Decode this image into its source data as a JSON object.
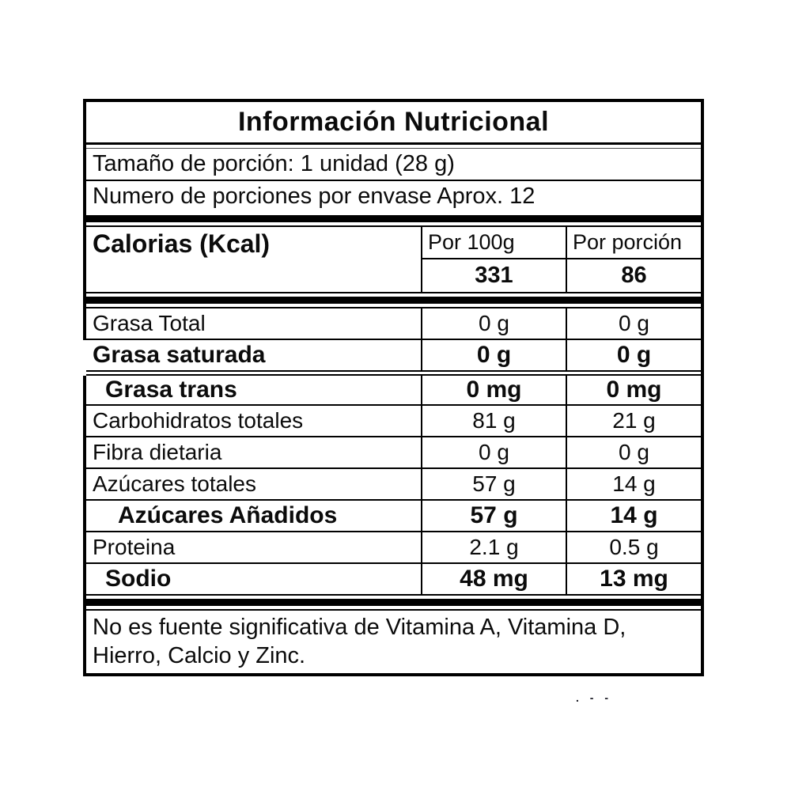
{
  "title": "Información Nutricional",
  "serving": {
    "line1": "Tamaño de porción: 1 unidad (28 g)",
    "line2": "Numero de porciones por envase Aprox. 12"
  },
  "calories": {
    "label": "Calorias (Kcal)",
    "per_100g_header": "Por 100g",
    "per_portion_header": "Por porción",
    "per_100g_value": "331",
    "per_portion_value": "86"
  },
  "columns": [
    "",
    "Por 100g",
    "Por porción"
  ],
  "nutrients": [
    {
      "label": "Grasa Total",
      "per_100g": "0 g",
      "per_portion": "0 g",
      "bold": false,
      "indent": 0
    },
    {
      "label": "Grasa saturada",
      "per_100g": "0 g",
      "per_portion": "0 g",
      "bold": true,
      "indent": 0
    },
    {
      "label": "Grasa trans",
      "per_100g": "0 mg",
      "per_portion": "0 mg",
      "bold": true,
      "indent": 1
    },
    {
      "label": "Carbohidratos totales",
      "per_100g": "81 g",
      "per_portion": "21 g",
      "bold": false,
      "indent": 0
    },
    {
      "label": "Fibra dietaria",
      "per_100g": "0 g",
      "per_portion": "0 g",
      "bold": false,
      "indent": 0
    },
    {
      "label": "Azúcares totales",
      "per_100g": "57 g",
      "per_portion": "14 g",
      "bold": false,
      "indent": 0
    },
    {
      "label": "Azúcares Añadidos",
      "per_100g": "57 g",
      "per_portion": "14 g",
      "bold": true,
      "indent": 2
    },
    {
      "label": "Proteina",
      "per_100g": "2.1 g",
      "per_portion": "0.5 g",
      "bold": false,
      "indent": 0
    },
    {
      "label": "Sodio",
      "per_100g": "48 mg",
      "per_portion": "13 mg",
      "bold": true,
      "indent": 1
    }
  ],
  "footnote": {
    "line1": "No es fuente significativa de Vitamina A, Vitamina D,",
    "line2": "Hierro, Calcio y Zinc."
  },
  "artifact_text": ". - -",
  "colors": {
    "border": "#000000",
    "text": "#0b0b0b",
    "background": "#ffffff"
  }
}
